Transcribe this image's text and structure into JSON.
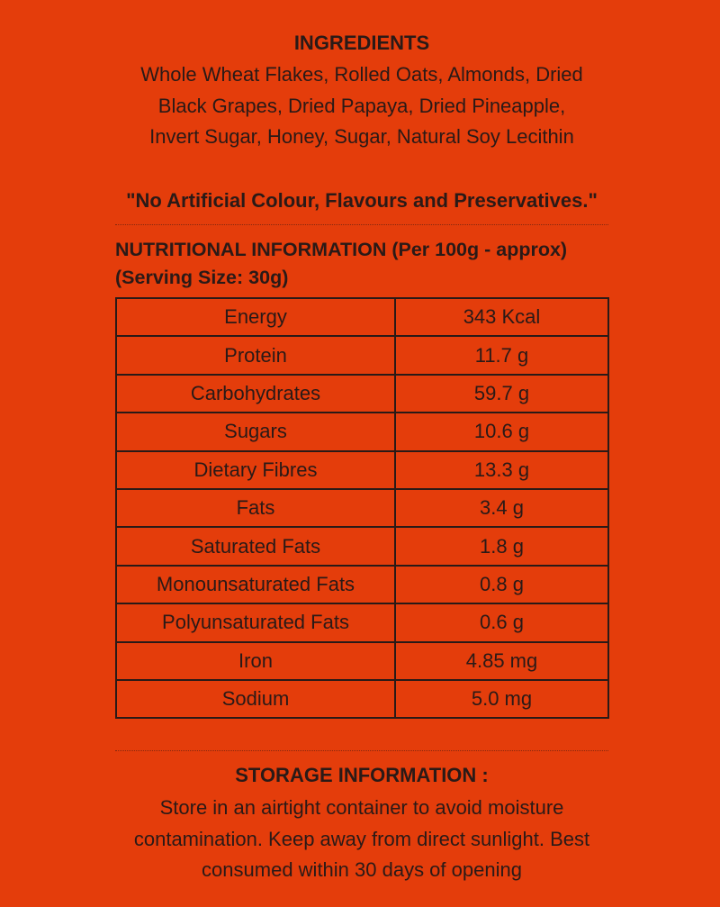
{
  "ingredients": {
    "title": "INGREDIENTS",
    "text": "Whole Wheat Flakes, Rolled Oats, Almonds, Dried Black Grapes, Dried Papaya, Dried Pineapple, Invert Sugar, Honey, Sugar, Natural Soy Lecithin",
    "note": "\"No Artificial Colour, Flavours and Preservatives.\""
  },
  "nutrition": {
    "title": "NUTRITIONAL INFORMATION (Per 100g - approx)",
    "serving": "(Serving Size: 30g)",
    "rows": [
      {
        "nutrient": "Energy",
        "value": "343 Kcal"
      },
      {
        "nutrient": "Protein",
        "value": "11.7 g"
      },
      {
        "nutrient": "Carbohydrates",
        "value": "59.7 g"
      },
      {
        "nutrient": "Sugars",
        "value": "10.6 g"
      },
      {
        "nutrient": "Dietary Fibres",
        "value": "13.3 g"
      },
      {
        "nutrient": "Fats",
        "value": "3.4 g"
      },
      {
        "nutrient": "Saturated Fats",
        "value": "1.8 g"
      },
      {
        "nutrient": "Monounsaturated Fats",
        "value": "0.8 g"
      },
      {
        "nutrient": "Polyunsaturated Fats",
        "value": "0.6 g"
      },
      {
        "nutrient": "Iron",
        "value": "4.85 mg"
      },
      {
        "nutrient": "Sodium",
        "value": "5.0 mg"
      }
    ]
  },
  "storage": {
    "title": "STORAGE INFORMATION :",
    "text": "Store in an airtight container to avoid moisture contamination. Keep away from direct sunlight. Best consumed within 30 days of opening"
  },
  "colors": {
    "background": "#e43d0b",
    "text": "#2a1a17"
  }
}
